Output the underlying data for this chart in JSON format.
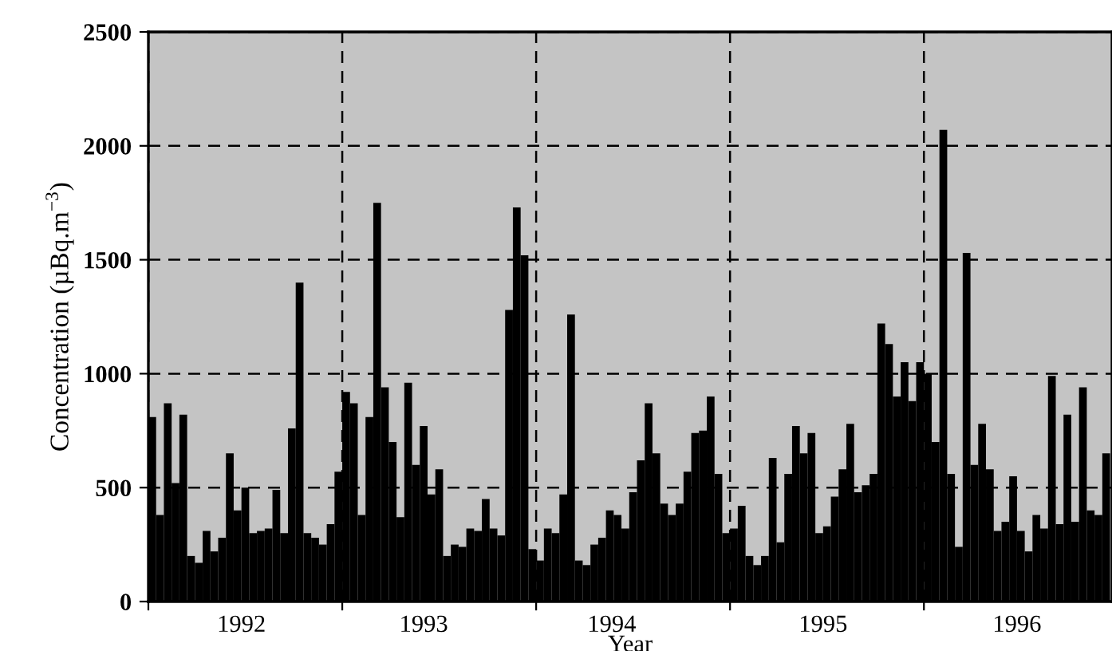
{
  "chart_data": {
    "type": "bar",
    "xlabel": "Year",
    "ylabel": "Concentration (µBq.m$^{−3}$)",
    "x": [
      1992.02,
      1992.06,
      1992.1,
      1992.14,
      1992.18,
      1992.22,
      1992.26,
      1992.3,
      1992.34,
      1992.38,
      1992.42,
      1992.46,
      1992.5,
      1992.54,
      1992.58,
      1992.62,
      1992.66,
      1992.7,
      1992.74,
      1992.78,
      1992.82,
      1992.86,
      1992.9,
      1992.94,
      1992.98,
      1993.02,
      1993.06,
      1993.1,
      1993.14,
      1993.18,
      1993.22,
      1993.26,
      1993.3,
      1993.34,
      1993.38,
      1993.42,
      1993.46,
      1993.5,
      1993.54,
      1993.58,
      1993.62,
      1993.66,
      1993.7,
      1993.74,
      1993.78,
      1993.82,
      1993.86,
      1993.9,
      1993.94,
      1993.98,
      1994.02,
      1994.06,
      1994.1,
      1994.14,
      1994.18,
      1994.22,
      1994.26,
      1994.3,
      1994.34,
      1994.38,
      1994.42,
      1994.46,
      1994.5,
      1994.54,
      1994.58,
      1994.62,
      1994.66,
      1994.7,
      1994.74,
      1994.78,
      1994.82,
      1994.86,
      1994.9,
      1994.94,
      1994.98,
      1995.02,
      1995.06,
      1995.1,
      1995.14,
      1995.18,
      1995.22,
      1995.26,
      1995.3,
      1995.34,
      1995.38,
      1995.42,
      1995.46,
      1995.5,
      1995.54,
      1995.58,
      1995.62,
      1995.66,
      1995.7,
      1995.74,
      1995.78,
      1995.82,
      1995.86,
      1995.9,
      1995.94,
      1995.98,
      1996.02,
      1996.06,
      1996.1,
      1996.14,
      1996.18,
      1996.22,
      1996.26,
      1996.3,
      1996.34,
      1996.38,
      1996.42,
      1996.46,
      1996.5,
      1996.54,
      1996.58,
      1996.62,
      1996.66,
      1996.7,
      1996.74,
      1996.78,
      1996.82,
      1996.86,
      1996.9,
      1996.94
    ],
    "series": [
      {
        "color": "#000000",
        "values": [
          810,
          380,
          870,
          520,
          820,
          200,
          170,
          310,
          220,
          280,
          650,
          400,
          500,
          300,
          310,
          320,
          490,
          300,
          760,
          1400,
          300,
          280,
          250,
          340,
          570,
          920,
          870,
          380,
          810,
          1750,
          940,
          700,
          370,
          960,
          600,
          770,
          470,
          580,
          200,
          250,
          240,
          320,
          310,
          450,
          320,
          290,
          1280,
          1730,
          1520,
          230,
          180,
          320,
          300,
          470,
          1260,
          180,
          160,
          250,
          280,
          400,
          380,
          320,
          480,
          620,
          870,
          650,
          430,
          380,
          430,
          570,
          740,
          750,
          900,
          560,
          300,
          320,
          420,
          200,
          160,
          200,
          630,
          260,
          560,
          770,
          650,
          740,
          300,
          330,
          460,
          580,
          780,
          480,
          510,
          560,
          1220,
          1130,
          900,
          1050,
          880,
          1050,
          1000,
          700,
          2070,
          560,
          240,
          1530,
          600,
          780,
          580,
          310,
          350,
          550,
          310,
          220,
          380,
          320,
          990,
          340,
          820,
          350,
          940,
          400,
          380,
          650
        ]
      }
    ],
    "xlim": [
      1992,
      1996.97
    ],
    "xticks": [
      {
        "value": 1992,
        "label": null
      },
      {
        "value": 1993,
        "label": null
      },
      {
        "value": 1994,
        "label": null
      },
      {
        "value": 1995,
        "label": null
      },
      {
        "value": 1996,
        "label": null
      },
      {
        "value": 1992.48,
        "label": "1992"
      },
      {
        "value": 1993.42,
        "label": "1993"
      },
      {
        "value": 1994.39,
        "label": "1994"
      },
      {
        "value": 1995.48,
        "label": "1995"
      },
      {
        "value": 1996.48,
        "label": "1996"
      }
    ],
    "ylim": [
      0,
      2500
    ],
    "yticks": [
      0,
      500,
      1000,
      1500,
      2000,
      2500
    ],
    "grid": true,
    "line_style": "dashed"
  }
}
